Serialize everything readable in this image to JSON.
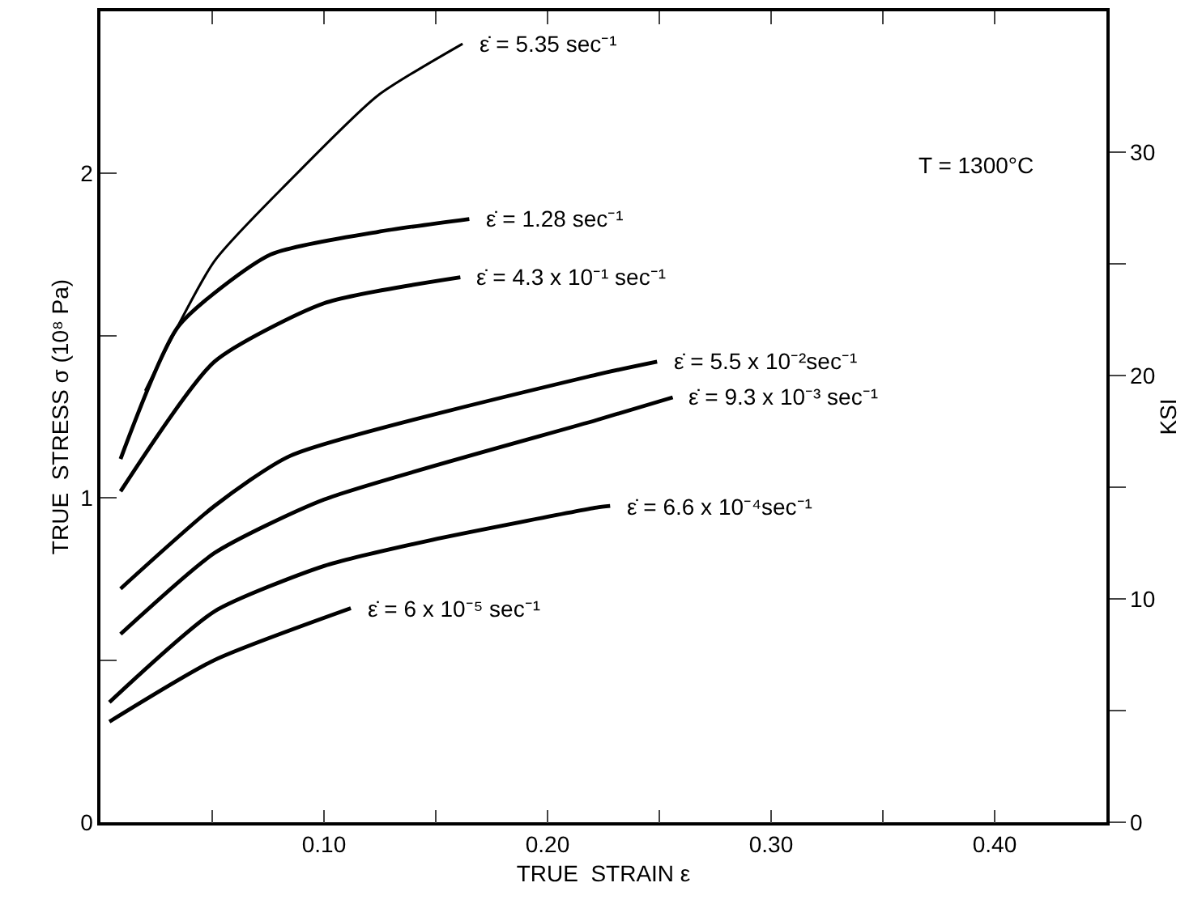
{
  "chart_data": {
    "type": "line",
    "xlabel": "TRUE  STRAIN ε",
    "ylabel": "TRUE  STRESS σ (10⁸ Pa)",
    "y2label": "KSI",
    "annotations": [
      "T = 1300°C"
    ],
    "xlim": [
      0,
      0.45
    ],
    "xticks": [
      {
        "value": 0.05,
        "label": null
      },
      {
        "value": 0.1,
        "label": "0.10"
      },
      {
        "value": 0.15,
        "label": null
      },
      {
        "value": 0.2,
        "label": "0.20"
      },
      {
        "value": 0.25,
        "label": null
      },
      {
        "value": 0.3,
        "label": "0.30"
      },
      {
        "value": 0.35,
        "label": null
      },
      {
        "value": 0.4,
        "label": "0.40"
      }
    ],
    "ylim": [
      0,
      2.5
    ],
    "yticks": [
      0,
      {
        "value": 0.5,
        "label": null
      },
      1,
      {
        "value": 1.5,
        "label": null
      },
      2
    ],
    "y2lim": [
      0,
      36.3
    ],
    "y2ticks": [
      0,
      {
        "value": 5,
        "label": null
      },
      10,
      {
        "value": 15,
        "label": null
      },
      20,
      {
        "value": 25,
        "label": null
      },
      30
    ],
    "grid": false,
    "legend": false,
    "marker": "none",
    "line_style": "solid",
    "series": [
      {
        "name": "ε̇ = 5.35 sec⁻¹",
        "color": "#000000",
        "x": [
          0.02,
          0.051,
          0.085,
          0.124,
          0.162
        ],
        "values": [
          1.33,
          1.73,
          1.98,
          2.24,
          2.4
        ]
      },
      {
        "name": "ε̇ = 1.28 sec⁻¹",
        "color": "#000000",
        "x": [
          0.009,
          0.035,
          0.076,
          0.124,
          0.165
        ],
        "values": [
          1.12,
          1.53,
          1.75,
          1.82,
          1.86
        ]
      },
      {
        "name": "ε̇ = 4.3 x 10⁻¹ sec⁻¹",
        "color": "#000000",
        "x": [
          0.009,
          0.051,
          0.1,
          0.161
        ],
        "values": [
          1.02,
          1.42,
          1.6,
          1.68
        ]
      },
      {
        "name": "ε̇ = 5.5 x 10⁻²sec⁻¹",
        "color": "#000000",
        "x": [
          0.009,
          0.051,
          0.085,
          0.222,
          0.249
        ],
        "values": [
          0.72,
          0.975,
          1.13,
          1.38,
          1.42
        ]
      },
      {
        "name": "ε̇ = 9.3 x 10⁻³ sec⁻¹",
        "color": "#000000",
        "x": [
          0.009,
          0.051,
          0.1,
          0.222,
          0.256
        ],
        "values": [
          0.58,
          0.83,
          0.995,
          1.24,
          1.31
        ]
      },
      {
        "name": "ε̇ = 6.6 x 10⁻⁴sec⁻¹",
        "color": "#000000",
        "x": [
          0.004,
          0.051,
          0.1,
          0.148,
          0.222,
          0.228
        ],
        "values": [
          0.37,
          0.65,
          0.79,
          0.87,
          0.97,
          0.975
        ]
      },
      {
        "name": "ε̇ = 6 x 10⁻⁵ sec⁻¹",
        "color": "#000000",
        "x": [
          0.004,
          0.051,
          0.112
        ],
        "values": [
          0.31,
          0.5,
          0.66
        ]
      }
    ]
  }
}
